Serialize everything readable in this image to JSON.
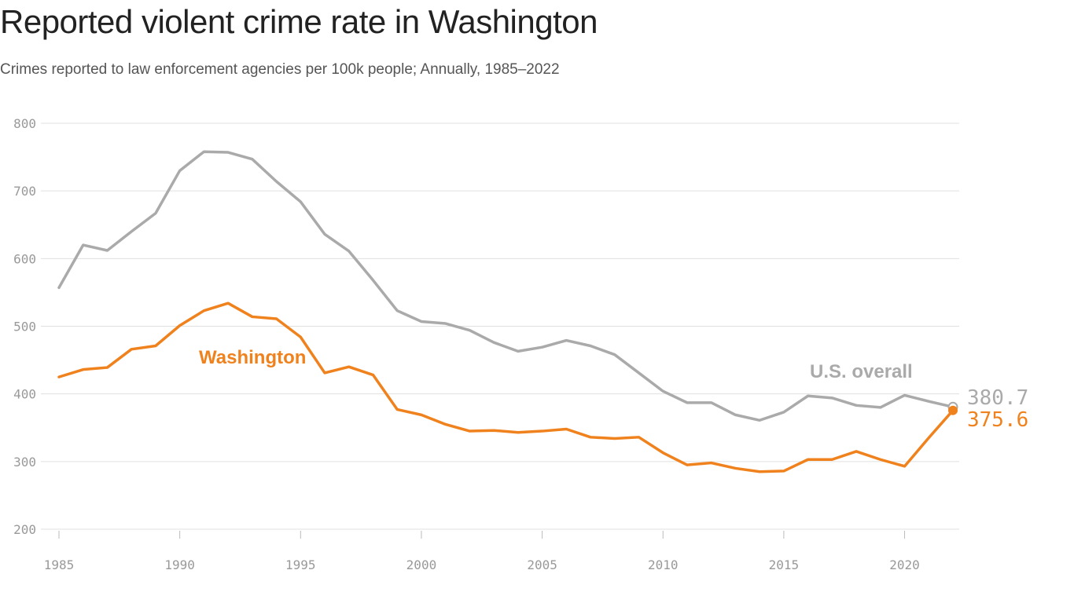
{
  "title": "Reported violent crime rate in Washington",
  "subtitle": "Crimes reported to law enforcement agencies per 100k people; Annually, 1985–2022",
  "chart_data": {
    "type": "line",
    "title": "Reported violent crime rate in Washington",
    "subtitle": "Crimes reported to law enforcement agencies per 100k people; Annually, 1985–2022",
    "xlabel": "",
    "ylabel": "",
    "xlim": [
      1985,
      2022
    ],
    "ylim": [
      200,
      800
    ],
    "yticks": [
      200,
      300,
      400,
      500,
      600,
      700,
      800
    ],
    "xticks": [
      1985,
      1990,
      1995,
      2000,
      2005,
      2010,
      2015,
      2020
    ],
    "grid": true,
    "x": [
      1985,
      1986,
      1987,
      1988,
      1989,
      1990,
      1991,
      1992,
      1993,
      1994,
      1995,
      1996,
      1997,
      1998,
      1999,
      2000,
      2001,
      2002,
      2003,
      2004,
      2005,
      2006,
      2007,
      2008,
      2009,
      2010,
      2011,
      2012,
      2013,
      2014,
      2015,
      2016,
      2017,
      2018,
      2019,
      2020,
      2021,
      2022
    ],
    "series": [
      {
        "name": "U.S. overall",
        "color": "#aaaaaa",
        "end_label": "380.7",
        "values": [
          557,
          620,
          612,
          640,
          667,
          730,
          758,
          757,
          747,
          714,
          684,
          636,
          611,
          568,
          523,
          507,
          504,
          494,
          476,
          463,
          469,
          479,
          471,
          458,
          431,
          404,
          387,
          387,
          369,
          361,
          373,
          397,
          394,
          383,
          380,
          398,
          389,
          380.7
        ]
      },
      {
        "name": "Washington",
        "color": "#f0821e",
        "end_label": "375.6",
        "values": [
          425,
          436,
          439,
          466,
          471,
          501,
          523,
          534,
          514,
          511,
          484,
          431,
          440,
          428,
          377,
          369,
          355,
          345,
          346,
          343,
          345,
          348,
          336,
          334,
          336,
          313,
          295,
          298,
          290,
          285,
          286,
          303,
          303,
          315,
          303,
          293,
          335,
          375.6
        ]
      }
    ]
  }
}
